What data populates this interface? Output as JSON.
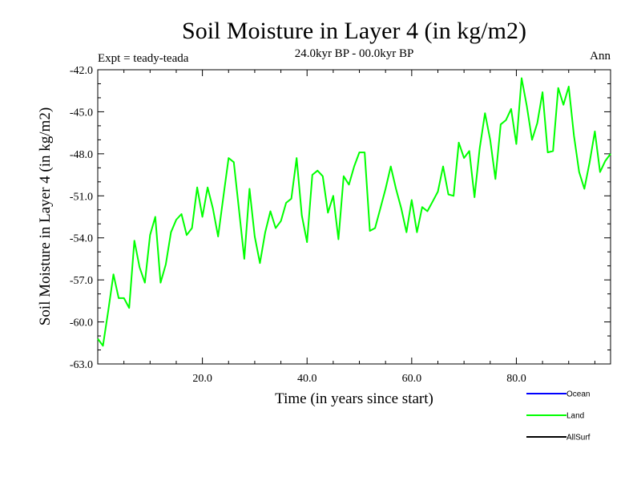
{
  "chart_data": {
    "type": "line",
    "title": "Soil Moisture in Layer 4 (in kg/m2)",
    "subtitle": "24.0kyr BP - 00.0kyr BP",
    "expt_label": "Expt = teady-teada",
    "season_label": "Ann",
    "xlabel": "Time (in years since start)",
    "ylabel": "Soil Moisture in Layer 4 (in kg/m2)",
    "xlim": [
      0,
      98
    ],
    "ylim": [
      -63.0,
      -42.0
    ],
    "x_ticks": [
      20.0,
      40.0,
      60.0,
      80.0
    ],
    "x_tick_labels": [
      "20.0",
      "40.0",
      "60.0",
      "80.0"
    ],
    "y_ticks": [
      -42.0,
      -45.0,
      -48.0,
      -51.0,
      -54.0,
      -57.0,
      -60.0,
      -63.0
    ],
    "y_tick_labels": [
      "-42.0",
      "-45.0",
      "-48.0",
      "-51.0",
      "-54.0",
      "-57.0",
      "-60.0",
      "-63.0"
    ],
    "legend": [
      {
        "name": "Ocean",
        "color": "#0000ff"
      },
      {
        "name": "Land",
        "color": "#00ff00"
      },
      {
        "name": "AllSurf",
        "color": "#000000"
      }
    ],
    "series": [
      {
        "name": "Land",
        "color": "#00ff00",
        "x": [
          0,
          1,
          2,
          3,
          4,
          5,
          6,
          7,
          8,
          9,
          10,
          11,
          12,
          13,
          14,
          15,
          16,
          17,
          18,
          19,
          20,
          21,
          22,
          23,
          24,
          25,
          26,
          27,
          28,
          29,
          30,
          31,
          32,
          33,
          34,
          35,
          36,
          37,
          38,
          39,
          40,
          41,
          42,
          43,
          44,
          45,
          46,
          47,
          48,
          49,
          50,
          51,
          52,
          53,
          54,
          55,
          56,
          57,
          58,
          59,
          60,
          61,
          62,
          63,
          64,
          65,
          66,
          67,
          68,
          69,
          70,
          71,
          72,
          73,
          74,
          75,
          76,
          77,
          78,
          79,
          80,
          81,
          82,
          83,
          84,
          85,
          86,
          87,
          88,
          89,
          90,
          91,
          92,
          93,
          94,
          95,
          96,
          97,
          98
        ],
        "values": [
          -61.2,
          -61.7,
          -59.2,
          -56.6,
          -58.3,
          -58.3,
          -59.0,
          -54.2,
          -56.1,
          -57.2,
          -53.8,
          -52.5,
          -57.2,
          -55.9,
          -53.6,
          -52.7,
          -52.3,
          -53.8,
          -53.3,
          -50.4,
          -52.5,
          -50.4,
          -51.9,
          -53.9,
          -51.1,
          -48.3,
          -48.6,
          -52.0,
          -55.5,
          -50.5,
          -53.9,
          -55.8,
          -53.6,
          -52.1,
          -53.3,
          -52.8,
          -51.5,
          -51.2,
          -48.3,
          -52.4,
          -54.3,
          -49.5,
          -49.2,
          -49.6,
          -52.2,
          -51.0,
          -54.1,
          -49.6,
          -50.2,
          -48.9,
          -47.9,
          -47.9,
          -53.5,
          -53.3,
          -51.9,
          -50.5,
          -48.9,
          -50.5,
          -51.9,
          -53.6,
          -51.3,
          -53.6,
          -51.8,
          -52.1,
          -51.4,
          -50.7,
          -48.9,
          -50.9,
          -51.0,
          -47.2,
          -48.3,
          -47.8,
          -51.1,
          -47.6,
          -45.1,
          -47.0,
          -49.8,
          -45.9,
          -45.6,
          -44.8,
          -47.3,
          -42.6,
          -44.6,
          -47.0,
          -45.8,
          -43.6,
          -47.9,
          -47.8,
          -43.3,
          -44.5,
          -43.2,
          -46.7,
          -49.3,
          -50.5,
          -48.6,
          -46.4,
          -49.3,
          -48.5,
          -48.0
        ]
      }
    ]
  }
}
